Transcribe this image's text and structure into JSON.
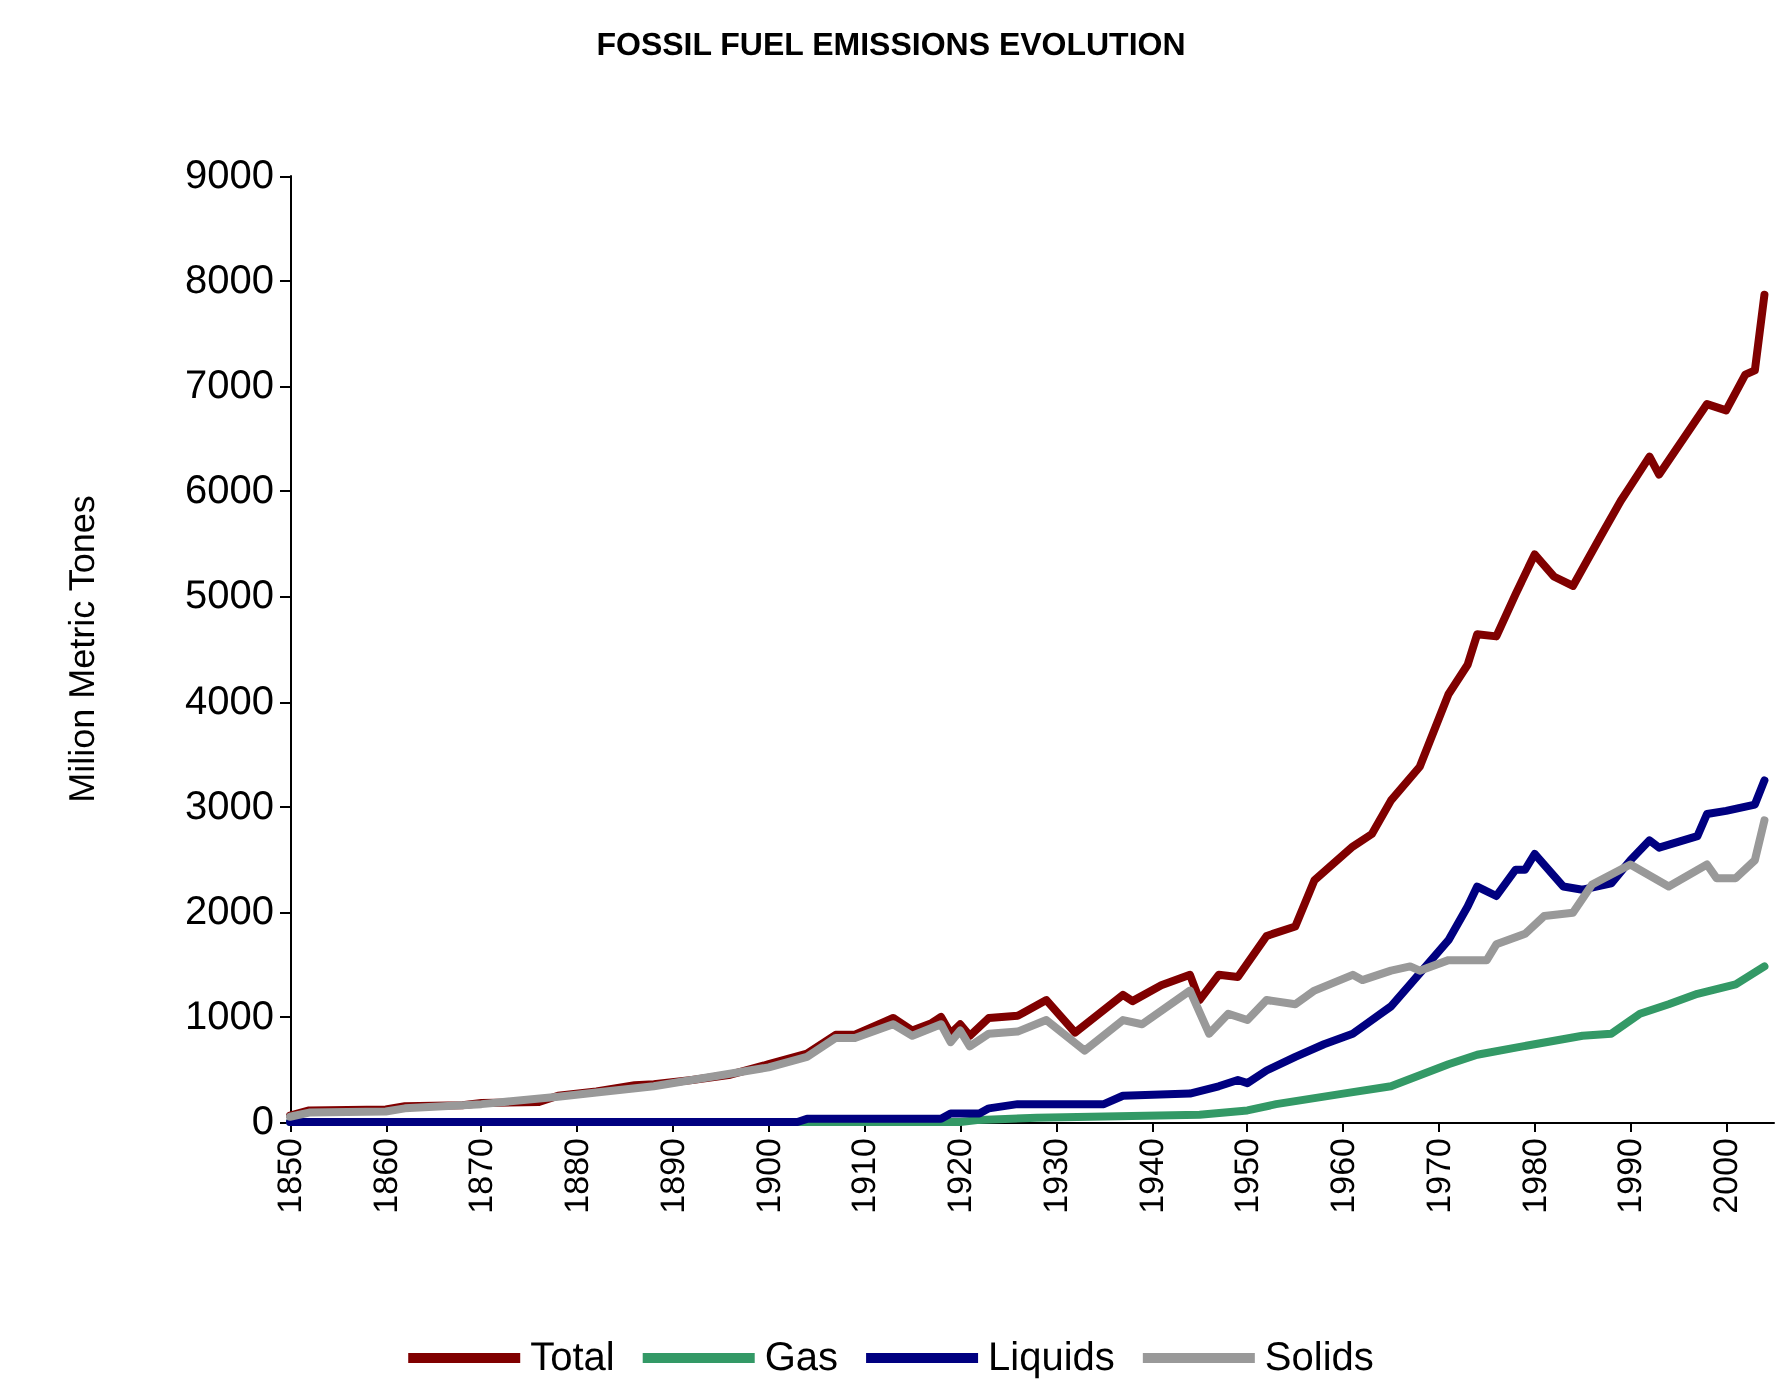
{
  "chart_data": {
    "type": "line",
    "title": "FOSSIL FUEL EMISSIONS EVOLUTION",
    "ylabel": "Milion Metric Tones",
    "xlim": [
      1850,
      2005
    ],
    "xticks": [
      1850,
      1860,
      1870,
      1880,
      1890,
      1900,
      1910,
      1920,
      1930,
      1940,
      1950,
      1960,
      1970,
      1980,
      1990,
      2000
    ],
    "ylim": [
      0,
      9000
    ],
    "yticks": [
      0,
      1000,
      2000,
      3000,
      4000,
      5000,
      6000,
      7000,
      8000,
      9000
    ],
    "grid": false,
    "legend": "bottom",
    "marker": "none",
    "line_style": "solid",
    "series": [
      {
        "name": "Total",
        "color": "#800000",
        "x": [
          1850,
          1852,
          1860,
          1862,
          1868,
          1870,
          1876,
          1878,
          1882,
          1886,
          1888,
          1892,
          1896,
          1900,
          1904,
          1907,
          1909,
          1912,
          1913,
          1915,
          1917,
          1918,
          1919,
          1920,
          1921,
          1923,
          1926,
          1929,
          1932,
          1937,
          1938,
          1941,
          1944,
          1945,
          1947,
          1949,
          1952,
          1955,
          1957,
          1961,
          1963,
          1965,
          1968,
          1971,
          1973,
          1974,
          1976,
          1978,
          1980,
          1982,
          1984,
          1987,
          1989,
          1990,
          1992,
          1993,
          1998,
          2000,
          2002,
          2003,
          2004
        ],
        "values": [
          60,
          110,
          120,
          150,
          160,
          180,
          190,
          250,
          290,
          350,
          360,
          400,
          450,
          550,
          650,
          830,
          830,
          950,
          990,
          870,
          940,
          1000,
          840,
          930,
          820,
          990,
          1010,
          1160,
          850,
          1210,
          1150,
          1300,
          1400,
          1160,
          1400,
          1380,
          1770,
          1860,
          2300,
          2620,
          2740,
          3060,
          3380,
          4070,
          4350,
          4640,
          4620,
          5020,
          5400,
          5190,
          5100,
          5590,
          5910,
          6050,
          6330,
          6160,
          6830,
          6770,
          7110,
          7150,
          7870
        ]
      },
      {
        "name": "Gas",
        "color": "#339966",
        "x": [
          1850,
          1920,
          1922,
          1928,
          1945,
          1950,
          1953,
          1960,
          1965,
          1971,
          1974,
          1980,
          1985,
          1988,
          1991,
          1994,
          1997,
          2001,
          2004
        ],
        "values": [
          0,
          0,
          20,
          40,
          70,
          110,
          170,
          270,
          340,
          550,
          640,
          740,
          820,
          840,
          1030,
          1120,
          1220,
          1310,
          1480
        ]
      },
      {
        "name": "Liquids",
        "color": "#000080",
        "x": [
          1850,
          1903,
          1904,
          1918,
          1919,
          1922,
          1923,
          1926,
          1935,
          1937,
          1944,
          1947,
          1949,
          1950,
          1952,
          1955,
          1958,
          1961,
          1965,
          1967,
          1971,
          1973,
          1974,
          1976,
          1978,
          1979,
          1980,
          1983,
          1985,
          1988,
          1990,
          1992,
          1993,
          1997,
          1998,
          2000,
          2003,
          2004
        ],
        "values": [
          0,
          0,
          30,
          30,
          80,
          80,
          130,
          170,
          170,
          250,
          270,
          340,
          400,
          370,
          490,
          620,
          740,
          840,
          1100,
          1310,
          1730,
          2050,
          2240,
          2150,
          2400,
          2400,
          2550,
          2240,
          2210,
          2270,
          2490,
          2680,
          2610,
          2720,
          2930,
          2960,
          3020,
          3250
        ]
      },
      {
        "name": "Solids",
        "color": "#999999",
        "x": [
          1850,
          1852,
          1860,
          1862,
          1870,
          1878,
          1882,
          1888,
          1900,
          1904,
          1907,
          1909,
          1913,
          1915,
          1918,
          1919,
          1920,
          1921,
          1923,
          1926,
          1929,
          1933,
          1937,
          1939,
          1944,
          1946,
          1948,
          1950,
          1952,
          1955,
          1957,
          1961,
          1962,
          1965,
          1967,
          1968,
          1971,
          1975,
          1976,
          1979,
          1981,
          1984,
          1986,
          1990,
          1994,
          1998,
          1999,
          2001,
          2003,
          2004
        ],
        "values": [
          50,
          90,
          100,
          130,
          170,
          240,
          280,
          340,
          520,
          620,
          800,
          800,
          930,
          820,
          930,
          760,
          870,
          720,
          840,
          860,
          970,
          680,
          970,
          930,
          1250,
          840,
          1030,
          970,
          1160,
          1120,
          1250,
          1400,
          1350,
          1440,
          1480,
          1440,
          1540,
          1540,
          1690,
          1790,
          1960,
          1990,
          2260,
          2450,
          2240,
          2450,
          2320,
          2320,
          2490,
          2870
        ]
      }
    ]
  }
}
